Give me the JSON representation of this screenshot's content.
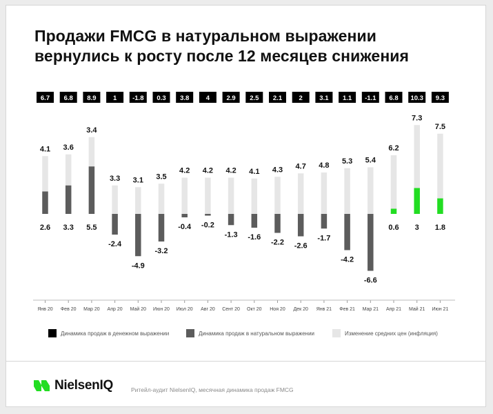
{
  "title": {
    "line1": "Продажи FMCG в натуральном выражении",
    "line2": "вернулись к росту после 12 месяцев снижения"
  },
  "chart_data": {
    "type": "bar",
    "categories": [
      "Янв 20",
      "Фев 20",
      "Мар 20",
      "Апр 20",
      "Май 20",
      "Июн 20",
      "Июл 20",
      "Авг 20",
      "Сент 20",
      "Окт 20",
      "Ноя 20",
      "Дек 20",
      "Янв 21",
      "Фев 21",
      "Мар 21",
      "Апр 21",
      "Май 21",
      "Июн 21"
    ],
    "series": [
      {
        "name": "Динамика продаж в денежном выражении",
        "values": [
          6.7,
          6.8,
          8.9,
          1,
          -1.8,
          0.3,
          3.8,
          4,
          2.9,
          2.5,
          2.1,
          2,
          3.1,
          1.1,
          -1.1,
          6.8,
          10.3,
          9.3
        ]
      },
      {
        "name": "Динамика продаж в натуральном выражении",
        "values": [
          2.6,
          3.3,
          5.5,
          -2.4,
          -4.9,
          -3.2,
          -0.4,
          -0.2,
          -1.3,
          -1.6,
          -2.2,
          -2.6,
          -1.7,
          -4.2,
          -6.6,
          0.6,
          3,
          1.8
        ]
      },
      {
        "name": "Изменение средних цен (инфляция)",
        "values": [
          4.1,
          3.6,
          3.4,
          3.3,
          3.1,
          3.5,
          4.2,
          4.2,
          4.2,
          4.1,
          4.3,
          4.7,
          4.8,
          5.3,
          5.4,
          6.2,
          7.3,
          7.5
        ]
      }
    ],
    "highlight_categories": [
      "Апр 21",
      "Май 21",
      "Июн 21"
    ],
    "colors": {
      "money": "#000000",
      "volume": "#5c5c5c",
      "volume_highlight": "#22dd22",
      "price": "#e6e6e6",
      "money_label": "#ffffff"
    },
    "legend_position": "bottom",
    "grid": false
  },
  "footer": {
    "logo_text": "NielsenIQ",
    "logo_icon": "nielseniq-logo-icon",
    "source": "Ритейл-аудит NielsenIQ, месячная динамика продаж FMCG"
  }
}
